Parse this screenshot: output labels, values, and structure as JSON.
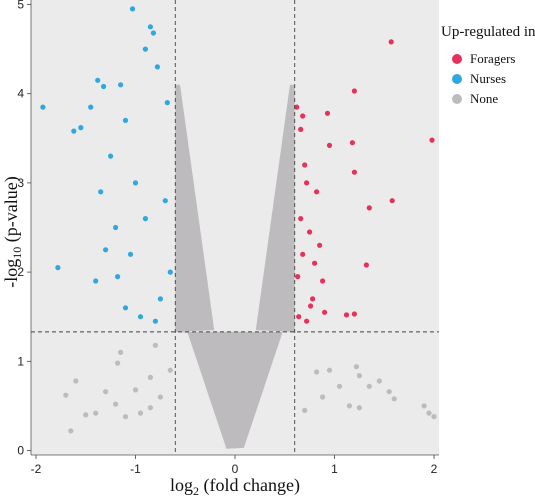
{
  "chart_data": {
    "type": "scatter",
    "title": "",
    "xlabel_main": "log",
    "xlabel_sub": "2",
    "xlabel_rest": " (fold change)",
    "ylabel_main": "-log",
    "ylabel_sub": "10",
    "ylabel_rest": " (p-value)",
    "xlim": [
      -2.05,
      2.05
    ],
    "ylim": [
      -0.05,
      5.05
    ],
    "x_ticks": [
      -2,
      -1,
      0,
      1,
      2
    ],
    "y_ticks": [
      0,
      1,
      2,
      3,
      4,
      5
    ],
    "thresholds": {
      "x": [
        -0.6,
        0.6
      ],
      "y": 1.33
    },
    "grid": false,
    "legend": {
      "title": "Up-regulated in",
      "position": "right-top",
      "entries": [
        {
          "label": "Foragers",
          "color": "#e8315a"
        },
        {
          "label": "Nurses",
          "color": "#2ea8df"
        },
        {
          "label": "None",
          "color": "#bdbbbd"
        }
      ]
    },
    "series": [
      {
        "name": "Foragers",
        "color": "#e8315a",
        "points": [
          [
            1.57,
            4.58
          ],
          [
            1.2,
            4.03
          ],
          [
            0.93,
            3.78
          ],
          [
            0.62,
            3.85
          ],
          [
            0.68,
            3.75
          ],
          [
            1.18,
            3.45
          ],
          [
            0.95,
            3.42
          ],
          [
            1.2,
            3.12
          ],
          [
            1.98,
            3.48
          ],
          [
            1.35,
            2.72
          ],
          [
            1.58,
            2.8
          ],
          [
            1.32,
            2.08
          ],
          [
            1.12,
            1.52
          ],
          [
            1.2,
            1.53
          ],
          [
            0.82,
            2.9
          ],
          [
            0.75,
            2.45
          ],
          [
            0.8,
            2.1
          ],
          [
            0.7,
            3.2
          ],
          [
            0.66,
            2.6
          ],
          [
            0.88,
            1.9
          ],
          [
            0.78,
            1.7
          ],
          [
            0.64,
            1.5
          ],
          [
            0.72,
            1.45
          ],
          [
            0.9,
            1.55
          ],
          [
            0.85,
            2.3
          ],
          [
            0.66,
            3.6
          ],
          [
            0.72,
            3.0
          ],
          [
            0.63,
            1.95
          ],
          [
            0.68,
            2.2
          ],
          [
            0.76,
            1.62
          ]
        ]
      },
      {
        "name": "Nurses",
        "color": "#2ea8df",
        "points": [
          [
            -1.03,
            4.95
          ],
          [
            -0.85,
            4.75
          ],
          [
            -0.82,
            4.68
          ],
          [
            -1.38,
            4.15
          ],
          [
            -1.32,
            4.08
          ],
          [
            -1.15,
            4.1
          ],
          [
            -1.45,
            3.85
          ],
          [
            -1.62,
            3.58
          ],
          [
            -1.93,
            3.85
          ],
          [
            -1.78,
            2.05
          ],
          [
            -1.55,
            3.62
          ],
          [
            -0.9,
            4.5
          ],
          [
            -0.78,
            4.3
          ],
          [
            -1.1,
            3.7
          ],
          [
            -1.25,
            3.3
          ],
          [
            -1.35,
            2.9
          ],
          [
            -1.2,
            2.5
          ],
          [
            -1.05,
            2.2
          ],
          [
            -1.4,
            1.9
          ],
          [
            -1.1,
            1.6
          ],
          [
            -0.95,
            1.5
          ],
          [
            -0.75,
            1.7
          ],
          [
            -0.7,
            2.8
          ],
          [
            -0.68,
            3.9
          ],
          [
            -0.65,
            2.0
          ],
          [
            -0.8,
            1.45
          ],
          [
            -1.0,
            3.0
          ],
          [
            -0.9,
            2.6
          ],
          [
            -1.18,
            1.95
          ],
          [
            -1.3,
            2.25
          ]
        ]
      },
      {
        "name": "None",
        "color": "#bdbbbd",
        "points": [
          [
            -1.6,
            0.78
          ],
          [
            -1.7,
            0.62
          ],
          [
            -1.5,
            0.4
          ],
          [
            -1.4,
            0.42
          ],
          [
            -1.3,
            0.66
          ],
          [
            -1.2,
            0.52
          ],
          [
            -1.1,
            0.38
          ],
          [
            -0.95,
            0.42
          ],
          [
            -0.85,
            0.48
          ],
          [
            -1.65,
            0.22
          ],
          [
            -1.18,
            0.98
          ],
          [
            -1.0,
            0.68
          ],
          [
            -0.85,
            0.82
          ],
          [
            -0.75,
            0.6
          ],
          [
            -0.65,
            0.9
          ],
          [
            -1.15,
            1.1
          ],
          [
            -0.8,
            1.18
          ],
          [
            0.82,
            0.88
          ],
          [
            0.95,
            0.9
          ],
          [
            1.22,
            0.94
          ],
          [
            1.25,
            0.84
          ],
          [
            1.35,
            0.72
          ],
          [
            1.45,
            0.78
          ],
          [
            1.55,
            0.66
          ],
          [
            1.6,
            0.58
          ],
          [
            1.25,
            0.48
          ],
          [
            1.15,
            0.5
          ],
          [
            1.9,
            0.5
          ],
          [
            1.95,
            0.42
          ],
          [
            2.0,
            0.38
          ],
          [
            0.88,
            0.6
          ],
          [
            0.7,
            0.45
          ],
          [
            1.05,
            0.72
          ]
        ]
      }
    ]
  }
}
